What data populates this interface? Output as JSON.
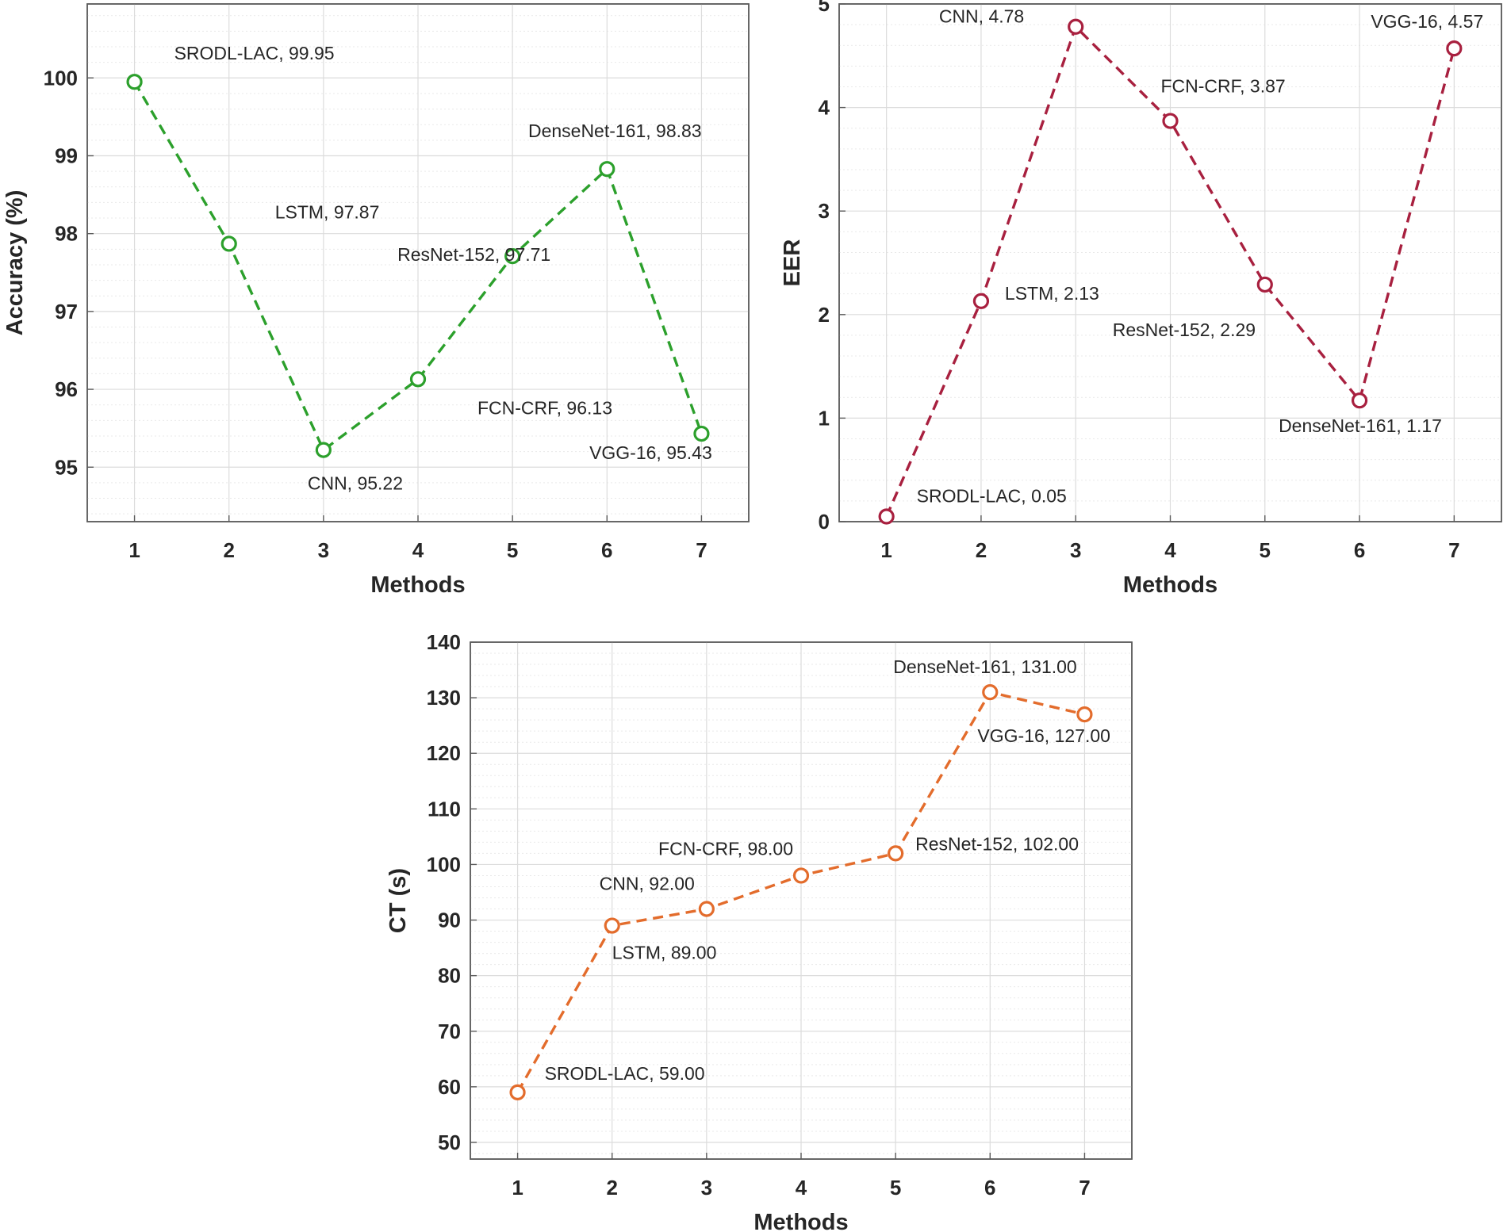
{
  "chart_data": [
    {
      "type": "line",
      "xlabel": "Methods",
      "ylabel": "Accuracy (%)",
      "x": [
        1,
        2,
        3,
        4,
        5,
        6,
        7
      ],
      "xlim": [
        0.5,
        7.5
      ],
      "ylim": [
        94.3,
        100.95
      ],
      "yticks": [
        95,
        96,
        97,
        98,
        99,
        100
      ],
      "color": "#2ca02c",
      "grid": true,
      "series": [
        {
          "name": "Accuracy",
          "values": [
            99.95,
            97.87,
            95.22,
            96.13,
            97.71,
            98.83,
            95.43
          ],
          "labels": [
            "SRODL-LAC, 99.95",
            "LSTM, 97.87",
            "CNN, 95.22",
            "FCN-CRF, 96.13",
            "ResNet-152, 97.71",
            "DenseNet-161, 98.83",
            "VGG-16, 95.43"
          ]
        }
      ]
    },
    {
      "type": "line",
      "xlabel": "Methods",
      "ylabel": "EER",
      "x": [
        1,
        2,
        3,
        4,
        5,
        6,
        7
      ],
      "xlim": [
        0.5,
        7.5
      ],
      "ylim": [
        0,
        5
      ],
      "yticks": [
        0,
        1,
        2,
        3,
        4,
        5
      ],
      "color": "#a8203f",
      "grid": true,
      "series": [
        {
          "name": "EER",
          "values": [
            0.05,
            2.13,
            4.78,
            3.87,
            2.29,
            1.17,
            4.57
          ],
          "labels": [
            "SRODL-LAC, 0.05",
            "LSTM, 2.13",
            "CNN, 4.78",
            "FCN-CRF, 3.87",
            "ResNet-152, 2.29",
            "DenseNet-161, 1.17",
            "VGG-16, 4.57"
          ]
        }
      ]
    },
    {
      "type": "line",
      "xlabel": "Methods",
      "ylabel": "CT (s)",
      "x": [
        1,
        2,
        3,
        4,
        5,
        6,
        7
      ],
      "xlim": [
        0.5,
        7.5
      ],
      "ylim": [
        47,
        140
      ],
      "yticks": [
        50,
        60,
        70,
        80,
        90,
        100,
        110,
        120,
        130,
        140
      ],
      "color": "#e36c2c",
      "grid": true,
      "series": [
        {
          "name": "CT",
          "values": [
            59.0,
            89.0,
            92.0,
            98.0,
            102.0,
            131.0,
            127.0
          ],
          "labels": [
            "SRODL-LAC, 59.00",
            "LSTM, 89.00",
            "CNN, 92.00",
            "FCN-CRF, 98.00",
            "ResNet-152, 102.00",
            "DenseNet-161, 131.00",
            "VGG-16, 127.00"
          ]
        }
      ]
    }
  ]
}
